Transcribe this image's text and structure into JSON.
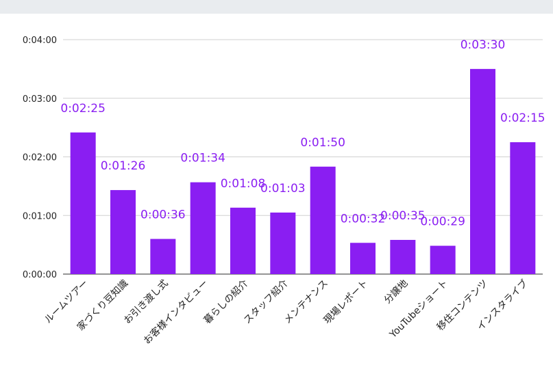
{
  "chart_data": {
    "type": "bar",
    "categories": [
      "ルームツアー",
      "家づくり豆知識",
      "お引き渡し式",
      "お客様インタビュー",
      "暮らしの紹介",
      "スタッフ紹介",
      "メンテナンス",
      "現場レポート",
      "分譲地",
      "YouTubeショート",
      "移住コンテンツ",
      "インスタライブ"
    ],
    "values_seconds": [
      145,
      86,
      36,
      94,
      68,
      63,
      110,
      32,
      35,
      29,
      210,
      135
    ],
    "value_labels": [
      "0:02:25",
      "0:01:26",
      "0:00:36",
      "0:01:34",
      "0:01:08",
      "0:01:03",
      "0:01:50",
      "0:00:32",
      "0:00:35",
      "0:00:29",
      "0:03:30",
      "0:02:15"
    ],
    "y_ticks": [
      "0:00:00",
      "0:01:00",
      "0:02:00",
      "0:03:00",
      "0:04:00"
    ],
    "ylim_seconds": [
      0,
      240
    ],
    "grid": true,
    "title": "",
    "xlabel": "",
    "ylabel": "",
    "bar_color": "#8a1ef2",
    "label_color": "#8a1ef2"
  }
}
